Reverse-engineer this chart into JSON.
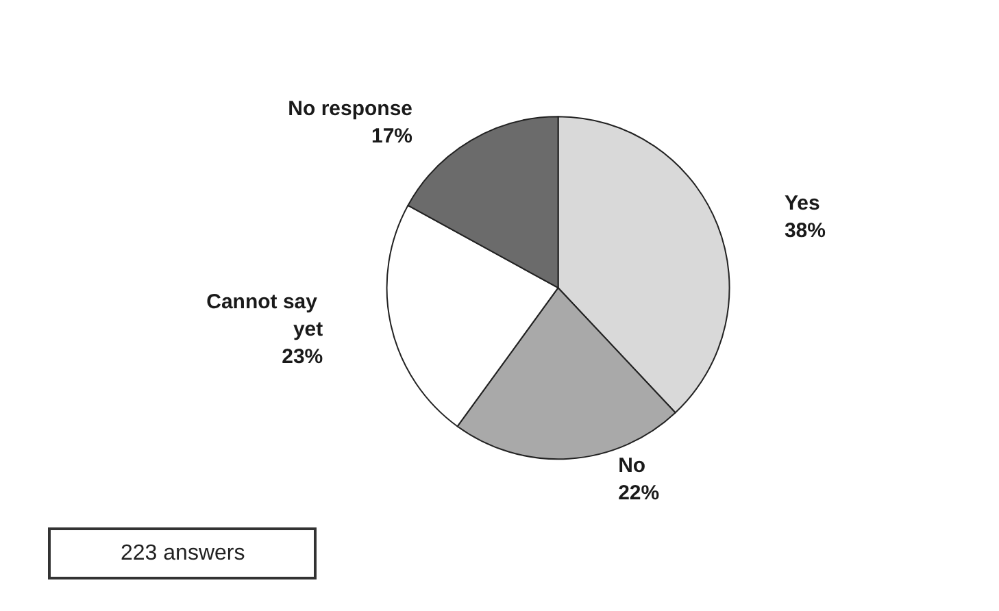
{
  "chart_data": {
    "type": "pie",
    "categories": [
      "Yes",
      "No",
      "Cannot say yet",
      "No response"
    ],
    "values": [
      38,
      22,
      23,
      17
    ],
    "value_labels": [
      "38%",
      "22%",
      "23%",
      "17%"
    ],
    "colors": [
      "#d9d9d9",
      "#a9a9a9",
      "#ffffff",
      "#6b6b6b"
    ],
    "annotations": [
      "223 answers"
    ]
  }
}
